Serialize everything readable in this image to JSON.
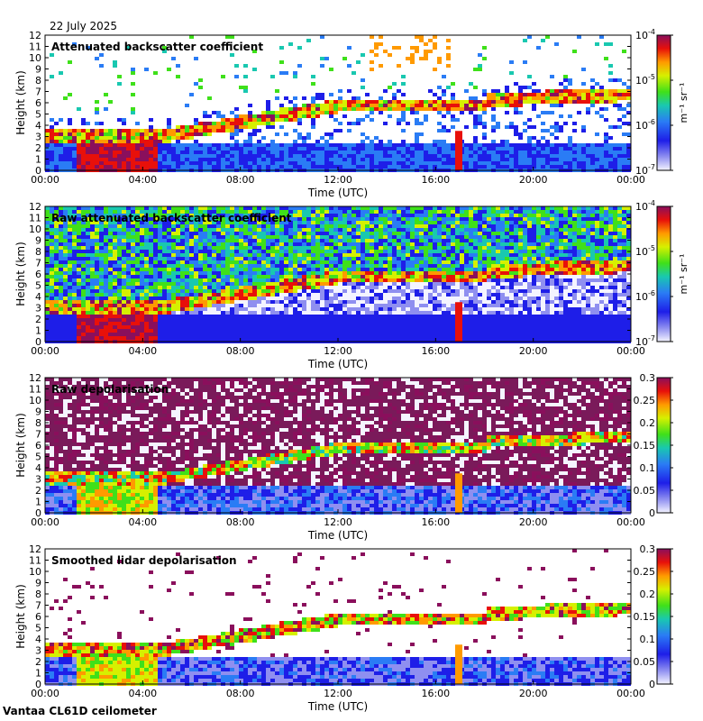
{
  "date": "22 July 2025",
  "footer": "Vantaa CL61D ceilometer",
  "chart_data": [
    {
      "type": "heatmap",
      "title": "Attenuated backscatter coefficient",
      "xlabel": "Time (UTC)",
      "ylabel": "Height (km)",
      "xticks": [
        "00:00",
        "04:00",
        "08:00",
        "12:00",
        "16:00",
        "20:00",
        "00:00"
      ],
      "yticks": [
        "0",
        "1",
        "2",
        "3",
        "4",
        "5",
        "6",
        "7",
        "8",
        "9",
        "10",
        "11",
        "12"
      ],
      "ylim": [
        0,
        12
      ],
      "colorbar": {
        "scale": "log",
        "range": [
          1e-07,
          0.0001
        ],
        "ticks": [
          "10",
          "10",
          "10",
          "10"
        ],
        "tick_exponents": [
          "-7",
          "-6",
          "-5",
          "-4"
        ],
        "unit": "m⁻¹ sr⁻¹"
      }
    },
    {
      "type": "heatmap",
      "title": "Raw attenuated backscatter coefficient",
      "xlabel": "Time (UTC)",
      "ylabel": "Height (km)",
      "xticks": [
        "00:00",
        "04:00",
        "08:00",
        "12:00",
        "16:00",
        "20:00",
        "00:00"
      ],
      "yticks": [
        "0",
        "1",
        "2",
        "3",
        "4",
        "5",
        "6",
        "7",
        "8",
        "9",
        "10",
        "11",
        "12"
      ],
      "ylim": [
        0,
        12
      ],
      "colorbar": {
        "scale": "log",
        "range": [
          1e-07,
          0.0001
        ],
        "ticks": [
          "10",
          "10",
          "10",
          "10"
        ],
        "tick_exponents": [
          "-7",
          "-6",
          "-5",
          "-4"
        ],
        "unit": "m⁻¹ sr⁻¹"
      }
    },
    {
      "type": "heatmap",
      "title": "Raw depolarisation",
      "xlabel": "Time (UTC)",
      "ylabel": "Height (km)",
      "xticks": [
        "00:00",
        "04:00",
        "08:00",
        "12:00",
        "16:00",
        "20:00",
        "00:00"
      ],
      "yticks": [
        "0",
        "1",
        "2",
        "3",
        "4",
        "5",
        "6",
        "7",
        "8",
        "9",
        "10",
        "11",
        "12"
      ],
      "ylim": [
        0,
        12
      ],
      "colorbar": {
        "scale": "linear",
        "range": [
          0,
          0.3
        ],
        "ticks": [
          "0",
          "0.05",
          "0.1",
          "0.15",
          "0.2",
          "0.25",
          "0.3"
        ]
      }
    },
    {
      "type": "heatmap",
      "title": "Smoothed lidar depolarisation",
      "xlabel": "Time (UTC)",
      "ylabel": "Height (km)",
      "xticks": [
        "00:00",
        "04:00",
        "08:00",
        "12:00",
        "16:00",
        "20:00",
        "00:00"
      ],
      "yticks": [
        "0",
        "1",
        "2",
        "3",
        "4",
        "5",
        "6",
        "7",
        "8",
        "9",
        "10",
        "11",
        "12"
      ],
      "ylim": [
        0,
        12
      ],
      "colorbar": {
        "scale": "linear",
        "range": [
          0,
          0.3
        ],
        "ticks": [
          "0",
          "0.05",
          "0.1",
          "0.15",
          "0.2",
          "0.25",
          "0.3"
        ]
      }
    }
  ]
}
